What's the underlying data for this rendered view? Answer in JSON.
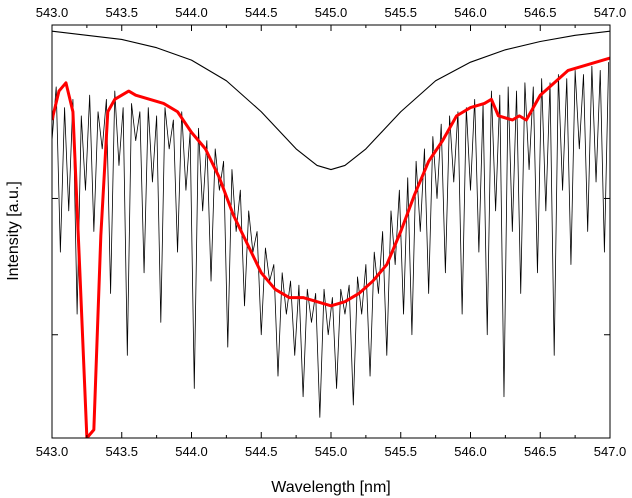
{
  "chart_data": {
    "type": "line",
    "title": "",
    "xlabel": "Wavelength [nm]",
    "ylabel": "Intensity [a.u.]",
    "xlim": [
      543.0,
      547.0
    ],
    "ylim": [
      0,
      1
    ],
    "x_ticks": [
      "543.0",
      "543.5",
      "544.0",
      "544.5",
      "545.0",
      "545.5",
      "546.0",
      "546.5",
      "547.0"
    ],
    "top_x_ticks": [
      "543.0",
      "543.5",
      "544.0",
      "544.5",
      "545.0",
      "545.5",
      "546.0",
      "546.5",
      "547.0"
    ],
    "y_tick_values": [
      0.25,
      0.58
    ],
    "y_tick_labels_shown": false,
    "grid": false,
    "legend": "none",
    "series": [
      {
        "role": "model-profile",
        "color": "#000000",
        "style": "thin",
        "x": [
          543.0,
          543.25,
          543.5,
          543.75,
          544.0,
          544.25,
          544.5,
          544.75,
          544.9,
          545.0,
          545.1,
          545.25,
          545.5,
          545.75,
          546.0,
          546.25,
          546.5,
          546.75,
          547.0
        ],
        "y": [
          0.985,
          0.975,
          0.965,
          0.945,
          0.915,
          0.865,
          0.79,
          0.7,
          0.66,
          0.65,
          0.66,
          0.7,
          0.79,
          0.865,
          0.91,
          0.94,
          0.96,
          0.975,
          0.985
        ]
      },
      {
        "role": "smoothed-spectrum",
        "color": "#ff0000",
        "style": "thick",
        "x": [
          543.0,
          543.05,
          543.1,
          543.15,
          543.2,
          543.25,
          543.3,
          543.35,
          543.4,
          543.45,
          543.5,
          543.55,
          543.6,
          543.7,
          543.8,
          543.9,
          544.0,
          544.1,
          544.2,
          544.3,
          544.4,
          544.5,
          544.6,
          544.7,
          544.8,
          544.9,
          545.0,
          545.1,
          545.2,
          545.3,
          545.4,
          545.5,
          545.6,
          545.7,
          545.8,
          545.9,
          546.0,
          546.1,
          546.15,
          546.2,
          546.3,
          546.35,
          546.4,
          546.5,
          546.6,
          546.7,
          546.8,
          546.9,
          547.0
        ],
        "y": [
          0.77,
          0.84,
          0.86,
          0.79,
          0.4,
          0.0,
          0.02,
          0.49,
          0.79,
          0.82,
          0.83,
          0.84,
          0.83,
          0.82,
          0.81,
          0.79,
          0.74,
          0.7,
          0.63,
          0.54,
          0.47,
          0.4,
          0.36,
          0.34,
          0.34,
          0.33,
          0.32,
          0.33,
          0.35,
          0.38,
          0.42,
          0.5,
          0.59,
          0.67,
          0.72,
          0.78,
          0.8,
          0.81,
          0.82,
          0.78,
          0.77,
          0.78,
          0.77,
          0.83,
          0.86,
          0.89,
          0.9,
          0.91,
          0.92
        ]
      },
      {
        "role": "observed-spectrum",
        "color": "#000000",
        "style": "thin-noisy",
        "x": [
          543.0,
          543.03,
          543.06,
          543.09,
          543.12,
          543.15,
          543.18,
          543.21,
          543.24,
          543.27,
          543.3,
          543.33,
          543.36,
          543.39,
          543.42,
          543.45,
          543.48,
          543.51,
          543.54,
          543.57,
          543.6,
          543.63,
          543.66,
          543.69,
          543.72,
          543.75,
          543.78,
          543.81,
          543.84,
          543.87,
          543.9,
          543.93,
          543.96,
          543.99,
          544.02,
          544.05,
          544.08,
          544.11,
          544.14,
          544.17,
          544.2,
          544.23,
          544.26,
          544.29,
          544.32,
          544.35,
          544.38,
          544.41,
          544.44,
          544.47,
          544.5,
          544.53,
          544.56,
          544.59,
          544.62,
          544.65,
          544.68,
          544.71,
          544.74,
          544.77,
          544.8,
          544.83,
          544.86,
          544.89,
          544.92,
          544.95,
          544.98,
          545.01,
          545.04,
          545.07,
          545.1,
          545.13,
          545.16,
          545.19,
          545.22,
          545.25,
          545.28,
          545.31,
          545.34,
          545.37,
          545.4,
          545.43,
          545.46,
          545.49,
          545.52,
          545.55,
          545.58,
          545.61,
          545.64,
          545.67,
          545.7,
          545.73,
          545.76,
          545.79,
          545.82,
          545.85,
          545.88,
          545.91,
          545.94,
          545.97,
          546.0,
          546.03,
          546.06,
          546.09,
          546.12,
          546.15,
          546.18,
          546.21,
          546.24,
          546.27,
          546.3,
          546.33,
          546.36,
          546.39,
          546.42,
          546.45,
          546.48,
          546.51,
          546.54,
          546.57,
          546.6,
          546.63,
          546.66,
          546.69,
          546.72,
          546.75,
          546.78,
          546.81,
          546.84,
          546.87,
          546.9,
          546.93,
          546.96,
          546.99
        ],
        "y": [
          0.72,
          0.85,
          0.45,
          0.8,
          0.55,
          0.82,
          0.3,
          0.78,
          0.6,
          0.83,
          0.5,
          0.79,
          0.7,
          0.82,
          0.35,
          0.84,
          0.66,
          0.8,
          0.2,
          0.81,
          0.72,
          0.79,
          0.4,
          0.8,
          0.62,
          0.78,
          0.28,
          0.8,
          0.7,
          0.77,
          0.45,
          0.79,
          0.6,
          0.74,
          0.12,
          0.75,
          0.55,
          0.72,
          0.38,
          0.7,
          0.6,
          0.67,
          0.22,
          0.65,
          0.5,
          0.6,
          0.32,
          0.55,
          0.45,
          0.5,
          0.25,
          0.46,
          0.38,
          0.42,
          0.15,
          0.4,
          0.3,
          0.38,
          0.2,
          0.37,
          0.1,
          0.36,
          0.28,
          0.35,
          0.05,
          0.36,
          0.25,
          0.34,
          0.12,
          0.36,
          0.3,
          0.37,
          0.08,
          0.39,
          0.3,
          0.42,
          0.15,
          0.45,
          0.35,
          0.5,
          0.2,
          0.55,
          0.42,
          0.6,
          0.3,
          0.63,
          0.25,
          0.67,
          0.5,
          0.7,
          0.35,
          0.73,
          0.58,
          0.76,
          0.4,
          0.78,
          0.62,
          0.79,
          0.3,
          0.8,
          0.6,
          0.82,
          0.45,
          0.81,
          0.25,
          0.84,
          0.55,
          0.83,
          0.1,
          0.85,
          0.5,
          0.84,
          0.35,
          0.86,
          0.65,
          0.85,
          0.4,
          0.87,
          0.55,
          0.86,
          0.2,
          0.88,
          0.6,
          0.87,
          0.42,
          0.89,
          0.7,
          0.88,
          0.5,
          0.9,
          0.62,
          0.89,
          0.45,
          0.91
        ]
      }
    ]
  }
}
